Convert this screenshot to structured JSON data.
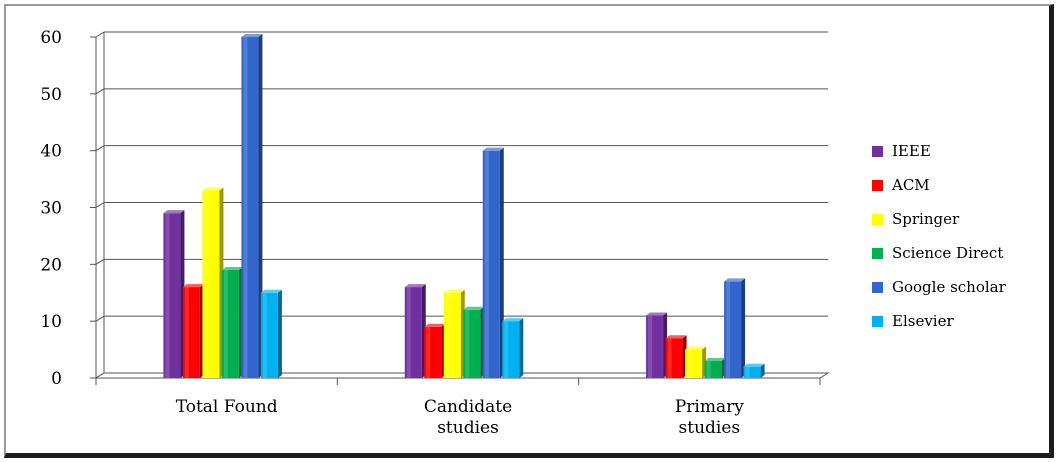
{
  "chart_data": {
    "type": "bar",
    "title": "",
    "xlabel": "",
    "ylabel": "",
    "ylim": [
      0,
      60
    ],
    "yticks": [
      "0",
      "10",
      "20",
      "30",
      "40",
      "50",
      "60"
    ],
    "grid": true,
    "legend_position": "right",
    "categories": [
      [
        "Total Found"
      ],
      [
        "Candidate",
        "studies"
      ],
      [
        "Primary",
        "studies"
      ]
    ],
    "series": [
      {
        "name": "IEEE",
        "color": "#7030a0",
        "values": [
          29,
          16,
          11
        ]
      },
      {
        "name": "ACM",
        "color": "#ff0000",
        "values": [
          16,
          9,
          7
        ]
      },
      {
        "name": "Springer",
        "color": "#ffff00",
        "values": [
          33,
          15,
          5
        ]
      },
      {
        "name": "Science Direct",
        "color": "#00b050",
        "values": [
          19,
          12,
          3
        ]
      },
      {
        "name": "Google scholar",
        "color": "#3366cc",
        "values": [
          60,
          40,
          17
        ]
      },
      {
        "name": "Elsevier",
        "color": "#00b0f0",
        "values": [
          15,
          10,
          2
        ]
      }
    ]
  }
}
